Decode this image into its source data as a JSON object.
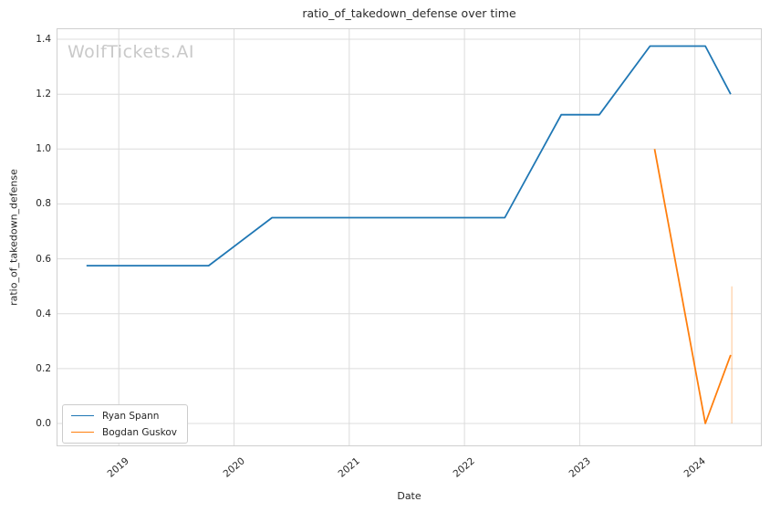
{
  "watermark": "WolfTickets.AI",
  "chart_data": {
    "type": "line",
    "title": "ratio_of_takedown_defense over time",
    "xlabel": "Date",
    "ylabel": "ratio_of_takedown_defense",
    "grid": true,
    "legend_position": "lower-left",
    "xlim": [
      2018.46,
      2024.58
    ],
    "ylim": [
      -0.083,
      1.44
    ],
    "x_ticks": [
      2019,
      2020,
      2021,
      2022,
      2023,
      2024
    ],
    "x_tick_labels": [
      "2019",
      "2020",
      "2021",
      "2022",
      "2023",
      "2024"
    ],
    "y_ticks": [
      0.0,
      0.2,
      0.4,
      0.6,
      0.8,
      1.0,
      1.2,
      1.4
    ],
    "y_tick_labels": [
      "0.0",
      "0.2",
      "0.4",
      "0.6",
      "0.8",
      "1.0",
      "1.2",
      "1.4"
    ],
    "series": [
      {
        "name": "Ryan Spann",
        "color": "#1f77b4",
        "points": [
          [
            2018.72,
            0.575
          ],
          [
            2019.78,
            0.575
          ],
          [
            2020.33,
            0.75
          ],
          [
            2022.35,
            0.75
          ],
          [
            2022.84,
            1.125
          ],
          [
            2023.17,
            1.125
          ],
          [
            2023.61,
            1.375
          ],
          [
            2024.09,
            1.375
          ],
          [
            2024.31,
            1.2
          ]
        ]
      },
      {
        "name": "Bogdan Guskov",
        "color": "#ff7f0e",
        "points": [
          [
            2023.65,
            1.0
          ],
          [
            2024.09,
            0.0
          ],
          [
            2024.31,
            0.25
          ]
        ]
      }
    ],
    "error_bar": {
      "x": 2024.32,
      "y_from": 0.0,
      "y_to": 0.5,
      "color": "#ff7f0e",
      "opacity": 0.3
    },
    "colors": {
      "grid": "#dcdcdc",
      "axes_border": "#cfcfcf",
      "tick_text": "#262626",
      "watermark": "#c9c9c9"
    }
  },
  "legend": {
    "items": [
      {
        "label": "Ryan Spann",
        "color": "#1f77b4"
      },
      {
        "label": "Bogdan Guskov",
        "color": "#ff7f0e"
      }
    ]
  }
}
